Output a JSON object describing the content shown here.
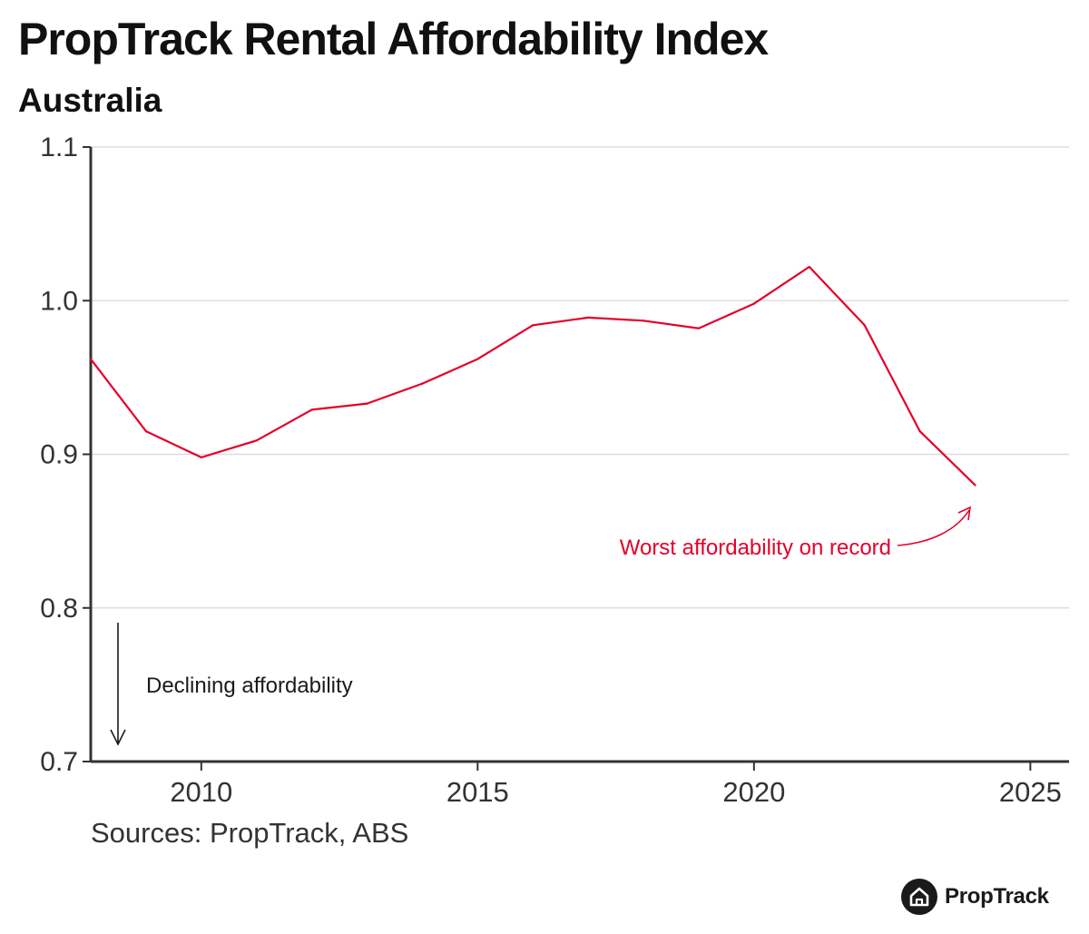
{
  "header": {
    "title": "PropTrack Rental Affordability Index",
    "subtitle": "Australia"
  },
  "chart_data": {
    "type": "line",
    "title": "PropTrack Rental Affordability Index",
    "subtitle": "Australia",
    "xlabel": "",
    "ylabel": "",
    "xlim": [
      2008,
      2025.7
    ],
    "ylim": [
      0.7,
      1.1
    ],
    "x_ticks": [
      2010,
      2015,
      2020,
      2025
    ],
    "x_tick_labels": [
      "2010",
      "2015",
      "2020",
      "2025"
    ],
    "y_ticks": [
      0.7,
      0.8,
      0.9,
      1.0,
      1.1
    ],
    "y_tick_labels": [
      "0.7",
      "0.8",
      "0.9",
      "1.0",
      "1.1"
    ],
    "grid": "horizontal",
    "series": [
      {
        "name": "Rental Affordability Index",
        "color": "#e4002b",
        "x": [
          2008,
          2009,
          2010,
          2011,
          2012,
          2013,
          2014,
          2015,
          2016,
          2017,
          2018,
          2019,
          2020,
          2021,
          2022,
          2023,
          2024
        ],
        "values": [
          0.962,
          0.915,
          0.898,
          0.909,
          0.929,
          0.933,
          0.946,
          0.962,
          0.984,
          0.989,
          0.987,
          0.982,
          0.998,
          1.022,
          0.984,
          0.915,
          0.88
        ]
      }
    ],
    "annotations": [
      {
        "text": "Worst affordability on record",
        "color": "#e4002b",
        "points_to": {
          "x": 2024,
          "y": 0.88
        }
      },
      {
        "text": "Declining affordability",
        "color": "#1a1a1a",
        "arrow": "down"
      }
    ]
  },
  "footer": {
    "source": "Sources: PropTrack, ABS",
    "logo_text": "PropTrack"
  },
  "colors": {
    "line": "#e4002b",
    "axis": "#333333",
    "grid": "#dddddd",
    "text": "#1a1a1a"
  },
  "icons": {
    "logo_icon": "house-icon"
  }
}
